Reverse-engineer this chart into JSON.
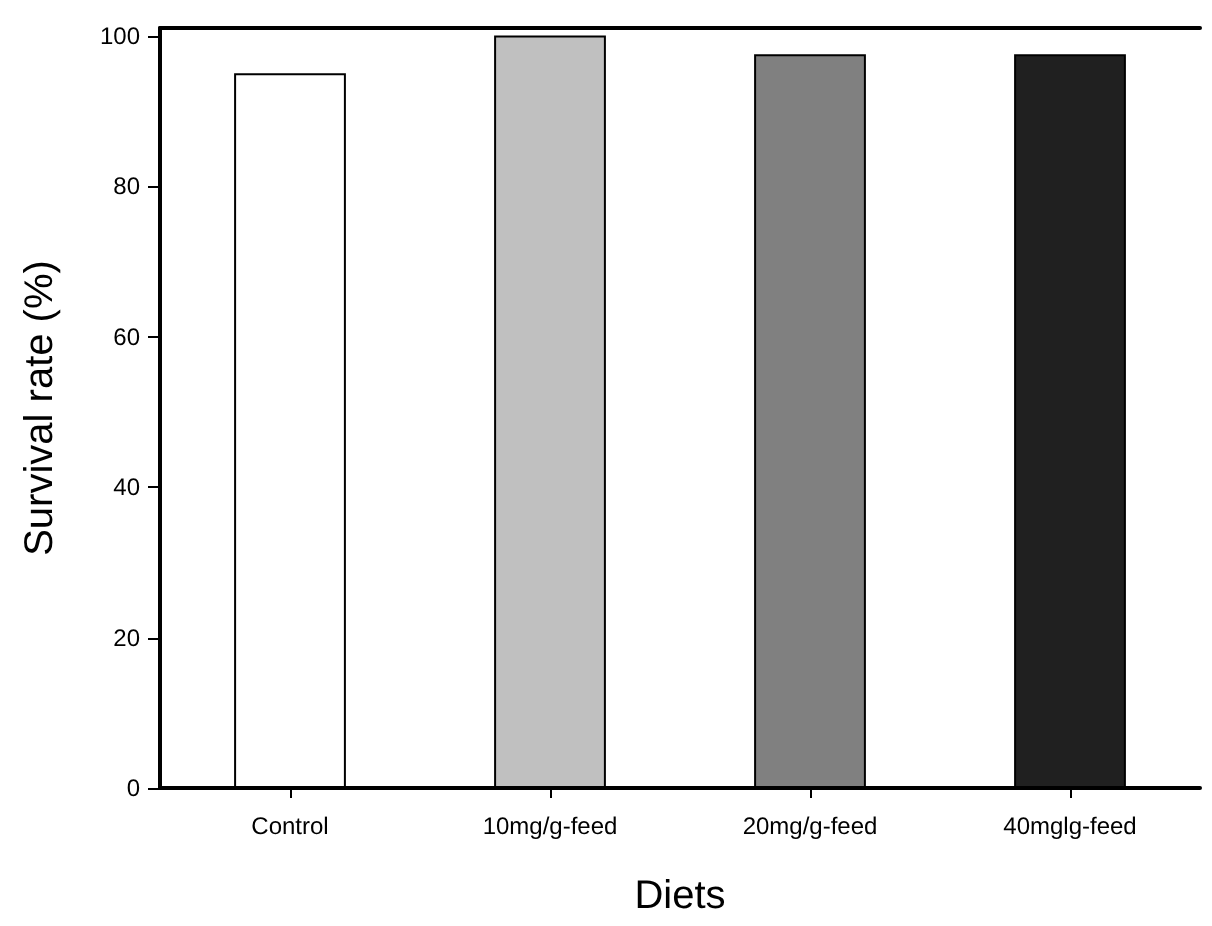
{
  "chart_data": {
    "type": "bar",
    "xlabel": "Diets",
    "ylabel": "Survival rate (%)",
    "categories": [
      "Control",
      "10mg/g-feed",
      "20mg/g-feed",
      "40mglg-feed"
    ],
    "values": [
      95,
      100,
      97.5,
      97.5
    ],
    "colors": [
      "#ffffff",
      "#c0c0c0",
      "#808080",
      "#202020"
    ],
    "ylim": [
      0,
      101
    ],
    "yticks": [
      0,
      20,
      40,
      60,
      80,
      100
    ],
    "grid": false
  }
}
